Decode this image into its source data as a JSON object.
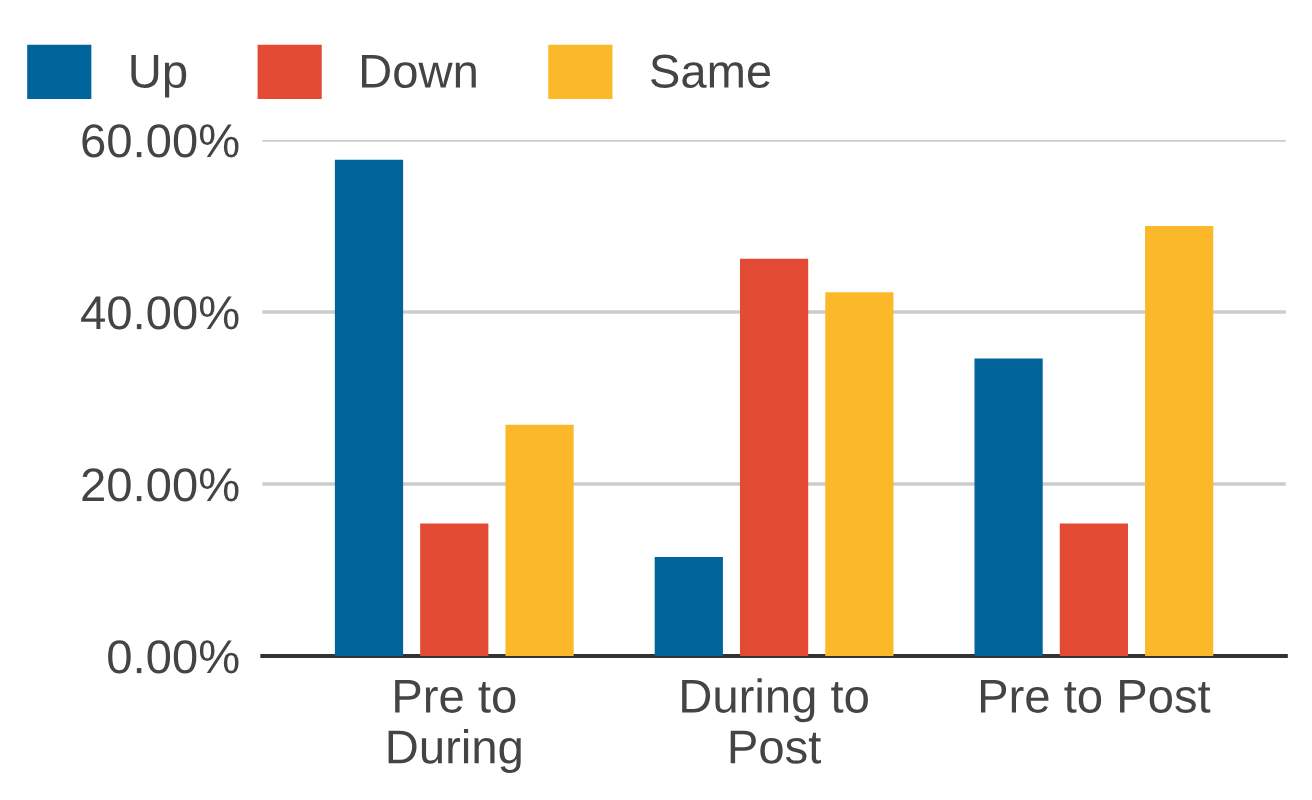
{
  "chart_data": {
    "type": "bar",
    "categories": [
      "Pre to\nDuring",
      "During to\nPost",
      "Pre to Post"
    ],
    "series": [
      {
        "name": "Up",
        "color": "#01649a",
        "values": [
          57.7,
          11.5,
          34.6
        ]
      },
      {
        "name": "Down",
        "color": "#e24a33",
        "values": [
          15.4,
          46.2,
          15.4
        ]
      },
      {
        "name": "Same",
        "color": "#fbb829",
        "values": [
          26.9,
          42.3,
          50.0
        ]
      }
    ],
    "ylim": [
      0,
      60
    ],
    "yticks": [
      {
        "value": 0,
        "label": "0.00%"
      },
      {
        "value": 20,
        "label": "20.00%"
      },
      {
        "value": 40,
        "label": "40.00%"
      },
      {
        "value": 60,
        "label": "60.00%"
      }
    ],
    "grid": "y",
    "legend": "top left"
  }
}
